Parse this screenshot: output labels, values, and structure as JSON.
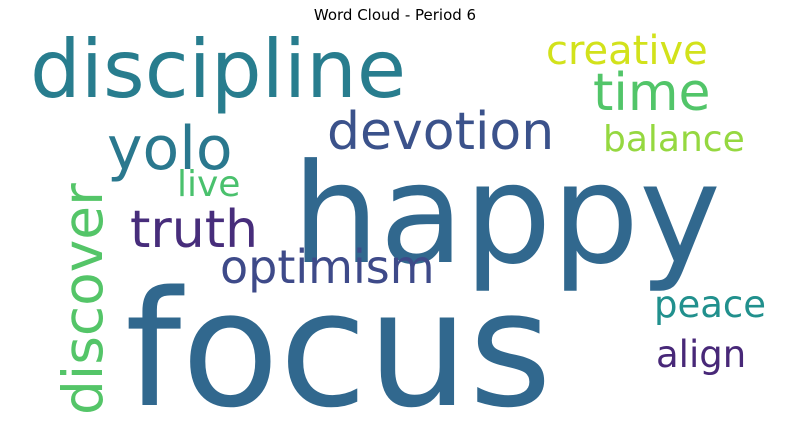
{
  "chart_data": {
    "type": "word_cloud",
    "title": "Word Cloud - Period 6",
    "words": [
      {
        "text": "focus",
        "color": "#31688e"
      },
      {
        "text": "happy",
        "color": "#31688e"
      },
      {
        "text": "discipline",
        "color": "#287d8e"
      },
      {
        "text": "discover",
        "color": "#54c568"
      },
      {
        "text": "devotion",
        "color": "#3b528b"
      },
      {
        "text": "yolo",
        "color": "#2a788e"
      },
      {
        "text": "truth",
        "color": "#472d7b"
      },
      {
        "text": "optimism",
        "color": "#3e4a89"
      },
      {
        "text": "time",
        "color": "#52c569"
      },
      {
        "text": "creative",
        "color": "#d2e21b"
      },
      {
        "text": "balance",
        "color": "#95d840"
      },
      {
        "text": "live",
        "color": "#4ac16d"
      },
      {
        "text": "peace",
        "color": "#21908d"
      },
      {
        "text": "align",
        "color": "#482878"
      }
    ]
  }
}
